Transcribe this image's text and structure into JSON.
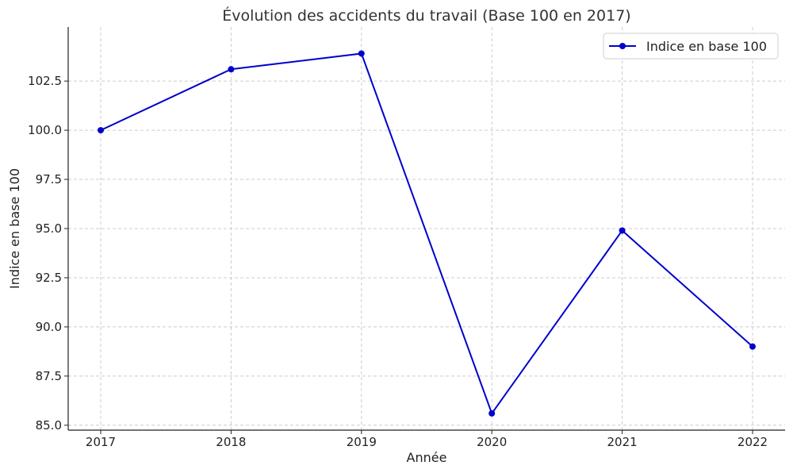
{
  "chart_data": {
    "type": "line",
    "title": "Évolution des accidents du travail (Base 100 en 2017)",
    "xlabel": "Année",
    "ylabel": "Indice en base 100",
    "x": [
      "2017",
      "2018",
      "2019",
      "2020",
      "2021",
      "2022"
    ],
    "series": [
      {
        "name": "Indice en base 100",
        "values": [
          100.0,
          103.1,
          103.9,
          85.6,
          94.9,
          89.0
        ],
        "color": "#0000cc"
      }
    ],
    "ylim": [
      84.75,
      105.25
    ],
    "yticks": [
      "85.0",
      "87.5",
      "90.0",
      "92.5",
      "95.0",
      "97.5",
      "100.0",
      "102.5"
    ],
    "grid": true,
    "legend_position": "top-right"
  }
}
